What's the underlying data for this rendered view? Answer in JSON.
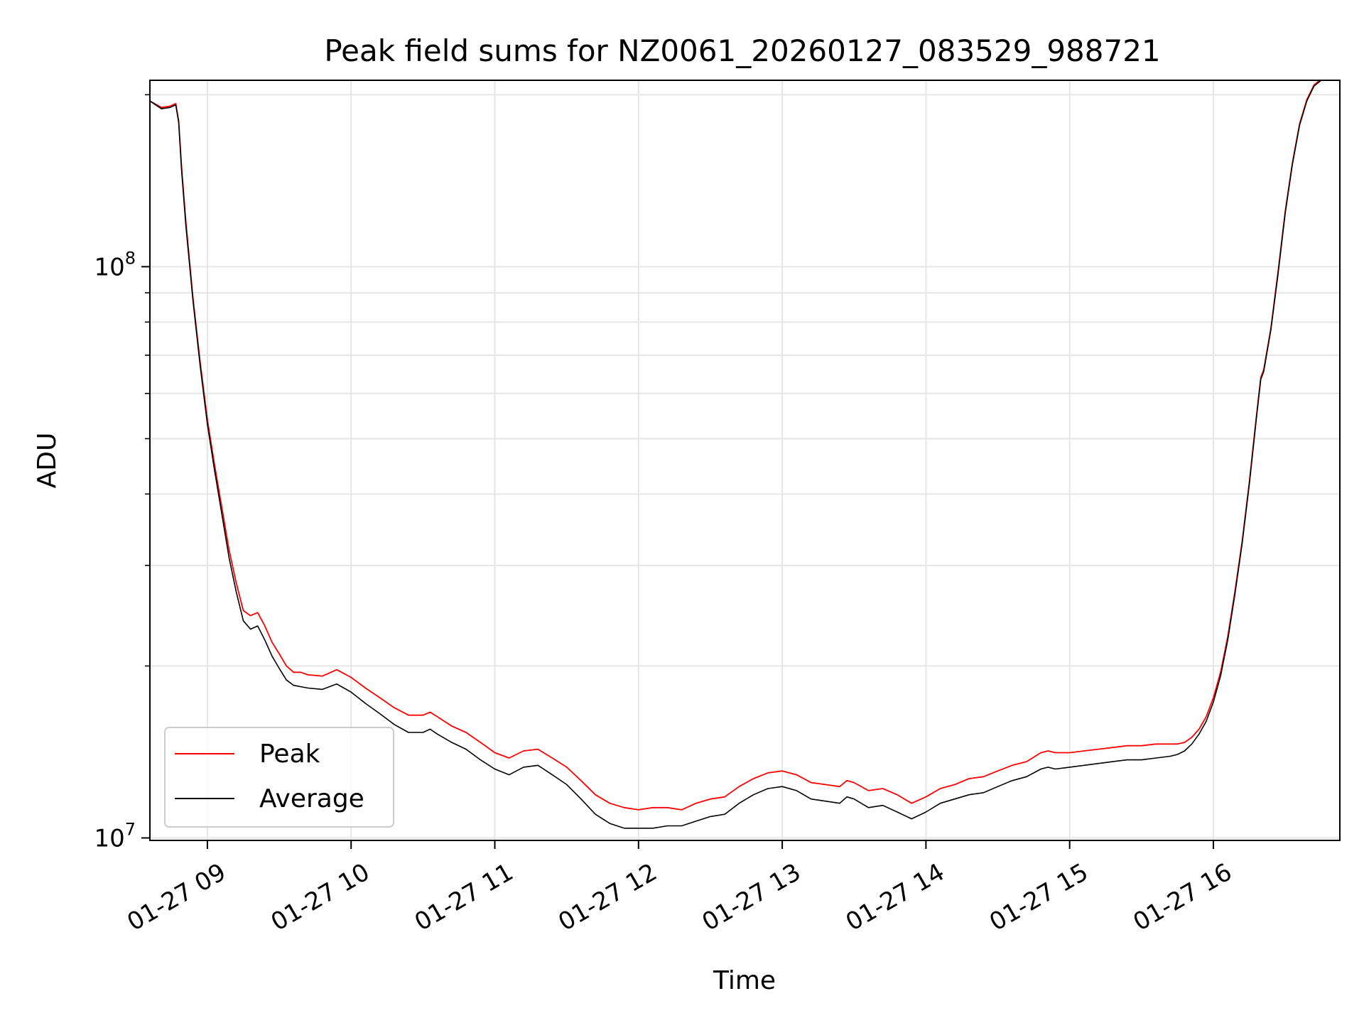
{
  "chart_data": {
    "type": "line",
    "title": "Peak field sums for NZ0061_20260127_083529_988721",
    "xlabel": "Time",
    "ylabel": "ADU",
    "x_unit": "hour of 2026-01-27",
    "xlim": [
      8.6,
      16.88
    ],
    "ylim": [
      9900000.0,
      212000000.0
    ],
    "yscale": "log",
    "grid": true,
    "legend_position": "lower-left",
    "x_ticks": [
      {
        "value": 9,
        "label": "01-27 09"
      },
      {
        "value": 10,
        "label": "01-27 10"
      },
      {
        "value": 11,
        "label": "01-27 11"
      },
      {
        "value": 12,
        "label": "01-27 12"
      },
      {
        "value": 13,
        "label": "01-27 13"
      },
      {
        "value": 14,
        "label": "01-27 14"
      },
      {
        "value": 15,
        "label": "01-27 15"
      },
      {
        "value": 16,
        "label": "01-27 16"
      }
    ],
    "y_ticks": [
      {
        "value": 10000000,
        "base": "10",
        "exp": "7"
      },
      {
        "value": 100000000,
        "base": "10",
        "exp": "8"
      }
    ],
    "series": [
      {
        "name": "Peak",
        "color": "#ff0000",
        "x": [
          8.6,
          8.68,
          8.74,
          8.78,
          8.8,
          8.82,
          8.85,
          8.9,
          8.95,
          9.0,
          9.05,
          9.1,
          9.15,
          9.2,
          9.25,
          9.3,
          9.35,
          9.4,
          9.45,
          9.5,
          9.55,
          9.6,
          9.65,
          9.7,
          9.8,
          9.9,
          9.95,
          10.0,
          10.1,
          10.2,
          10.3,
          10.4,
          10.5,
          10.55,
          10.6,
          10.7,
          10.8,
          10.9,
          11.0,
          11.1,
          11.2,
          11.3,
          11.4,
          11.5,
          11.6,
          11.7,
          11.8,
          11.9,
          12.0,
          12.1,
          12.2,
          12.3,
          12.4,
          12.5,
          12.6,
          12.7,
          12.8,
          12.9,
          13.0,
          13.1,
          13.2,
          13.3,
          13.4,
          13.45,
          13.5,
          13.6,
          13.7,
          13.8,
          13.9,
          14.0,
          14.1,
          14.2,
          14.3,
          14.4,
          14.5,
          14.6,
          14.7,
          14.8,
          14.85,
          14.9,
          15.0,
          15.1,
          15.2,
          15.3,
          15.4,
          15.5,
          15.6,
          15.7,
          15.75,
          15.8,
          15.85,
          15.9,
          15.95,
          16.0,
          16.05,
          16.1,
          16.15,
          16.2,
          16.25,
          16.3,
          16.33,
          16.35,
          16.4,
          16.45,
          16.5,
          16.55,
          16.6,
          16.65,
          16.7,
          16.75,
          16.88
        ],
        "y": [
          195000000,
          190000000,
          191000000,
          193000000,
          180000000,
          150000000,
          120000000,
          88000000,
          68000000,
          54000000,
          45000000,
          38000000,
          32000000,
          28000000,
          25000000,
          24500000,
          24800000,
          23500000,
          22000000,
          21000000,
          20000000,
          19500000,
          19500000,
          19300000,
          19200000,
          19700000,
          19400000,
          19100000,
          18300000,
          17600000,
          16900000,
          16400000,
          16400000,
          16600000,
          16300000,
          15700000,
          15300000,
          14700000,
          14100000,
          13800000,
          14200000,
          14300000,
          13800000,
          13300000,
          12600000,
          11900000,
          11500000,
          11300000,
          11200000,
          11300000,
          11300000,
          11200000,
          11500000,
          11700000,
          11800000,
          12300000,
          12700000,
          13000000,
          13100000,
          12900000,
          12500000,
          12400000,
          12300000,
          12600000,
          12500000,
          12100000,
          12200000,
          11900000,
          11500000,
          11800000,
          12200000,
          12400000,
          12700000,
          12800000,
          13100000,
          13400000,
          13600000,
          14100000,
          14200000,
          14100000,
          14100000,
          14200000,
          14300000,
          14400000,
          14500000,
          14500000,
          14600000,
          14600000,
          14600000,
          14700000,
          15000000,
          15500000,
          16300000,
          17600000,
          19500000,
          22500000,
          27000000,
          33000000,
          42000000,
          55000000,
          64000000,
          66000000,
          78000000,
          98000000,
          125000000,
          152000000,
          178000000,
          196000000,
          208000000,
          213000000,
          213000000
        ]
      },
      {
        "name": "Average",
        "color": "#000000",
        "x": [
          8.6,
          8.68,
          8.74,
          8.78,
          8.8,
          8.82,
          8.85,
          8.9,
          8.95,
          9.0,
          9.05,
          9.1,
          9.15,
          9.2,
          9.25,
          9.3,
          9.35,
          9.4,
          9.45,
          9.5,
          9.55,
          9.6,
          9.65,
          9.7,
          9.8,
          9.9,
          9.95,
          10.0,
          10.1,
          10.2,
          10.3,
          10.4,
          10.5,
          10.55,
          10.6,
          10.7,
          10.8,
          10.9,
          11.0,
          11.1,
          11.2,
          11.3,
          11.4,
          11.5,
          11.6,
          11.7,
          11.8,
          11.9,
          12.0,
          12.1,
          12.2,
          12.3,
          12.4,
          12.5,
          12.6,
          12.7,
          12.8,
          12.9,
          13.0,
          13.1,
          13.2,
          13.3,
          13.4,
          13.45,
          13.5,
          13.6,
          13.7,
          13.8,
          13.9,
          14.0,
          14.1,
          14.2,
          14.3,
          14.4,
          14.5,
          14.6,
          14.7,
          14.8,
          14.85,
          14.9,
          15.0,
          15.1,
          15.2,
          15.3,
          15.4,
          15.5,
          15.6,
          15.7,
          15.75,
          15.8,
          15.85,
          15.9,
          15.95,
          16.0,
          16.05,
          16.1,
          16.15,
          16.2,
          16.25,
          16.3,
          16.33,
          16.35,
          16.4,
          16.45,
          16.5,
          16.55,
          16.6,
          16.65,
          16.7,
          16.75,
          16.88
        ],
        "y": [
          195000000,
          189000000,
          190000000,
          192000000,
          179000000,
          148000000,
          118000000,
          87000000,
          67000000,
          53000000,
          44000000,
          37000000,
          31000000,
          27000000,
          24000000,
          23200000,
          23500000,
          22200000,
          20800000,
          19800000,
          18900000,
          18500000,
          18400000,
          18300000,
          18200000,
          18600000,
          18300000,
          18000000,
          17200000,
          16500000,
          15800000,
          15300000,
          15300000,
          15500000,
          15200000,
          14700000,
          14300000,
          13700000,
          13200000,
          12900000,
          13300000,
          13400000,
          12900000,
          12400000,
          11700000,
          11000000,
          10600000,
          10400000,
          10400000,
          10400000,
          10500000,
          10500000,
          10700000,
          10900000,
          11000000,
          11500000,
          11900000,
          12200000,
          12300000,
          12100000,
          11700000,
          11600000,
          11500000,
          11800000,
          11700000,
          11300000,
          11400000,
          11100000,
          10800000,
          11100000,
          11500000,
          11700000,
          11900000,
          12000000,
          12300000,
          12600000,
          12800000,
          13200000,
          13300000,
          13200000,
          13300000,
          13400000,
          13500000,
          13600000,
          13700000,
          13700000,
          13800000,
          13900000,
          14000000,
          14200000,
          14600000,
          15200000,
          16000000,
          17300000,
          19200000,
          22200000,
          26700000,
          32700000,
          41600000,
          54500000,
          63500000,
          65500000,
          77500000,
          97000000,
          124000000,
          151000000,
          177000000,
          195000000,
          207000000,
          212000000,
          212000000
        ]
      }
    ]
  }
}
